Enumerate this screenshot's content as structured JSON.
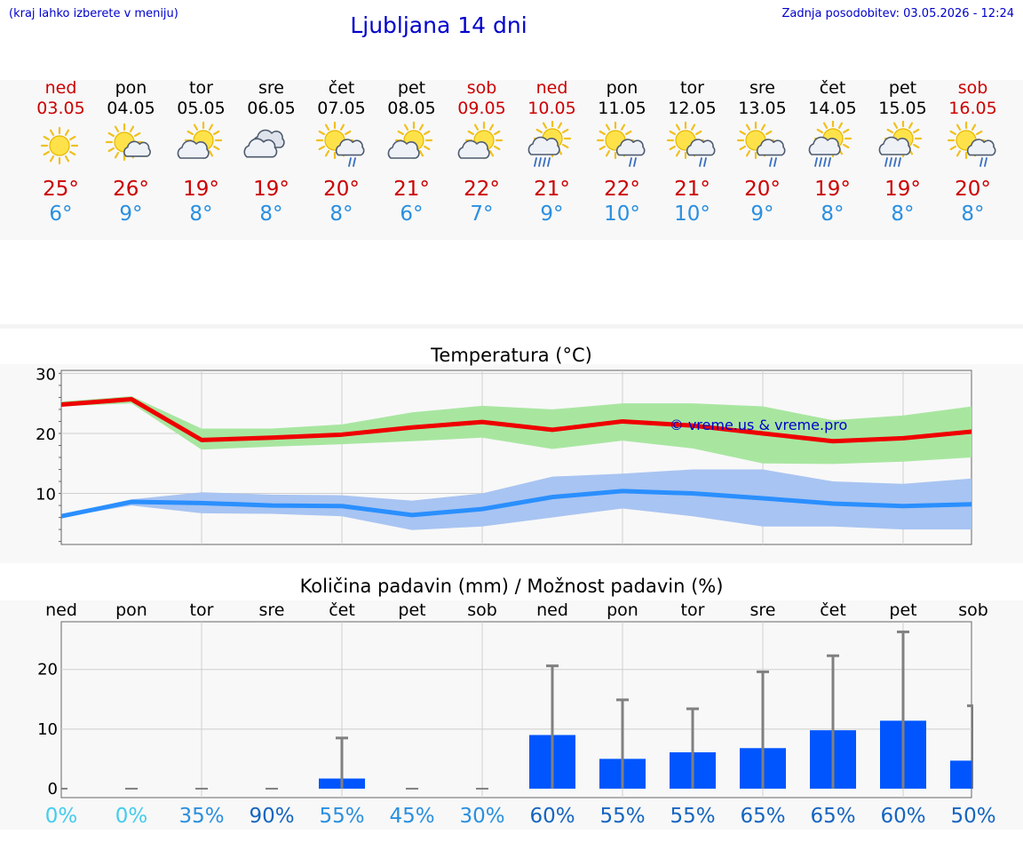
{
  "header": {
    "hint": "(kraj lahko izberete v meniju)",
    "title": "Ljubljana 14 dni",
    "updated": "Zadnja posodobitev: 03.05.2026 - 12:24"
  },
  "colors": {
    "link_blue": "#0000cc",
    "weekend_red": "#cc0000",
    "max_temp": "#cc0000",
    "min_temp": "#2a8fe0",
    "max_line": "#ee0000",
    "max_band": "#a8e6a0",
    "min_line": "#2a8fff",
    "min_band": "#a8c4f2",
    "rain_bar": "#0055ff",
    "err_bar": "#808080"
  },
  "days": [
    {
      "name": "ned",
      "date": "03.05",
      "weekend": true,
      "icon": "sun-icon",
      "max": "25°",
      "min": "6°"
    },
    {
      "name": "pon",
      "date": "04.05",
      "weekend": false,
      "icon": "sun-small-cloud-icon",
      "max": "26°",
      "min": "9°"
    },
    {
      "name": "tor",
      "date": "05.05",
      "weekend": false,
      "icon": "sun-cloud-icon",
      "max": "19°",
      "min": "8°"
    },
    {
      "name": "sre",
      "date": "06.05",
      "weekend": false,
      "icon": "cloudy-icon",
      "max": "19°",
      "min": "8°"
    },
    {
      "name": "čet",
      "date": "07.05",
      "weekend": false,
      "icon": "sun-cloud-light-rain-icon",
      "max": "20°",
      "min": "8°"
    },
    {
      "name": "pet",
      "date": "08.05",
      "weekend": false,
      "icon": "sun-cloud-icon",
      "max": "21°",
      "min": "6°"
    },
    {
      "name": "sob",
      "date": "09.05",
      "weekend": true,
      "icon": "sun-cloud-icon",
      "max": "22°",
      "min": "7°"
    },
    {
      "name": "ned",
      "date": "10.05",
      "weekend": true,
      "icon": "sun-cloud-heavy-rain-icon",
      "max": "21°",
      "min": "9°"
    },
    {
      "name": "pon",
      "date": "11.05",
      "weekend": false,
      "icon": "sun-cloud-light-rain-icon",
      "max": "22°",
      "min": "10°"
    },
    {
      "name": "tor",
      "date": "12.05",
      "weekend": false,
      "icon": "sun-cloud-light-rain-icon",
      "max": "21°",
      "min": "10°"
    },
    {
      "name": "sre",
      "date": "13.05",
      "weekend": false,
      "icon": "sun-cloud-light-rain-icon",
      "max": "20°",
      "min": "9°"
    },
    {
      "name": "čet",
      "date": "14.05",
      "weekend": false,
      "icon": "sun-cloud-heavy-rain-icon",
      "max": "19°",
      "min": "8°"
    },
    {
      "name": "pet",
      "date": "15.05",
      "weekend": false,
      "icon": "sun-cloud-heavy-rain-icon",
      "max": "19°",
      "min": "8°"
    },
    {
      "name": "sob",
      "date": "16.05",
      "weekend": true,
      "icon": "sun-cloud-light-rain-icon",
      "max": "20°",
      "min": "8°"
    }
  ],
  "chart_data": [
    {
      "type": "line",
      "title": "Temperatura (°C)",
      "watermark": "© vreme.us & vreme.pro",
      "ylim": [
        1.5,
        30.5
      ],
      "yticks": [
        "10",
        "20",
        "30"
      ],
      "grid": true,
      "x": [
        "03.05",
        "04.05",
        "05.05",
        "06.05",
        "07.05",
        "08.05",
        "09.05",
        "10.05",
        "11.05",
        "12.05",
        "13.05",
        "14.05",
        "15.05",
        "16.05"
      ],
      "series": [
        {
          "values": [
            24.8,
            25.7,
            18.9,
            19.3,
            19.8,
            21.0,
            21.9,
            20.6,
            22.0,
            21.3,
            20.0,
            18.7,
            19.2,
            20.3
          ],
          "band_low": [
            24.5,
            25.0,
            17.3,
            17.8,
            18.2,
            18.7,
            19.3,
            17.4,
            18.8,
            17.5,
            15.0,
            14.9,
            15.3,
            16.0
          ],
          "band_high": [
            25.3,
            26.2,
            20.8,
            20.8,
            21.5,
            23.5,
            24.6,
            24.0,
            25.0,
            25.0,
            24.5,
            22.2,
            23.0,
            24.5
          ]
        },
        {
          "values": [
            6.2,
            8.6,
            8.4,
            8.0,
            7.9,
            6.4,
            7.4,
            9.4,
            10.4,
            10.0,
            9.2,
            8.3,
            7.9,
            8.2
          ],
          "band_low": [
            6.0,
            8.0,
            6.7,
            6.6,
            6.2,
            3.9,
            4.5,
            6.0,
            7.5,
            6.2,
            4.5,
            4.5,
            4.0,
            4.0
          ],
          "band_high": [
            6.5,
            9.0,
            10.2,
            9.8,
            9.7,
            8.8,
            10.0,
            12.8,
            13.3,
            14.0,
            14.0,
            12.0,
            11.6,
            12.5
          ]
        }
      ]
    },
    {
      "type": "bar",
      "title": "Količina padavin (mm) / Možnost padavin (%)",
      "ylim": [
        -1.5,
        28
      ],
      "yticks": [
        "0",
        "10",
        "20"
      ],
      "grid": true,
      "categories": [
        "ned",
        "pon",
        "tor",
        "sre",
        "čet",
        "pet",
        "sob",
        "ned",
        "pon",
        "tor",
        "sre",
        "čet",
        "pet",
        "sob"
      ],
      "values": [
        0,
        0,
        0,
        0,
        1.7,
        0,
        0,
        9.0,
        5.0,
        6.1,
        6.8,
        9.8,
        11.4,
        4.7
      ],
      "error_high": [
        0,
        0,
        0,
        0,
        8.5,
        0,
        0,
        20.6,
        14.9,
        13.4,
        19.6,
        22.3,
        26.3,
        13.9
      ],
      "probability": [
        "0%",
        "0%",
        "35%",
        "90%",
        "55%",
        "45%",
        "30%",
        "60%",
        "55%",
        "55%",
        "65%",
        "65%",
        "60%",
        "50%"
      ],
      "probability_colors": [
        "#44ccee",
        "#44ccee",
        "#2a8fe0",
        "#1565c0",
        "#2a8fe0",
        "#2a8fe0",
        "#2a8fe0",
        "#1565c0",
        "#1565c0",
        "#1565c0",
        "#1565c0",
        "#1565c0",
        "#1565c0",
        "#1565c0"
      ]
    }
  ]
}
